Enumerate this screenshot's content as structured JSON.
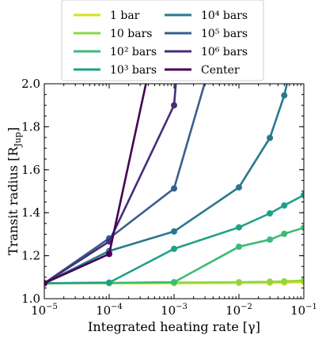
{
  "chart_data": {
    "type": "line",
    "xlabel": "Integrated heating rate [γ]",
    "ylabel": "Transit radius [R",
    "ylabel_sub": "Jup",
    "ylabel_end": "]",
    "xscale": "log",
    "xlim": [
      1e-05,
      0.1
    ],
    "ylim": [
      1.0,
      2.0
    ],
    "xticks": [
      {
        "v": 1e-05,
        "base": "10",
        "exp": "−5"
      },
      {
        "v": 0.0001,
        "base": "10",
        "exp": "−4"
      },
      {
        "v": 0.001,
        "base": "10",
        "exp": "−3"
      },
      {
        "v": 0.01,
        "base": "10",
        "exp": "−2"
      },
      {
        "v": 0.1,
        "base": "10",
        "exp": "−1"
      }
    ],
    "yticks": [
      "1.0",
      "1.2",
      "1.4",
      "1.6",
      "1.8",
      "2.0"
    ],
    "grid": false,
    "legend_placement": "top-center outside",
    "series": [
      {
        "name": "1 bar",
        "color": "#d5e21a",
        "points": [
          [
            1e-05,
            1.072
          ],
          [
            0.0001,
            1.072
          ],
          [
            0.001,
            1.072
          ],
          [
            0.01,
            1.073
          ],
          [
            0.03,
            1.074
          ],
          [
            0.05,
            1.075
          ],
          [
            0.1,
            1.077
          ]
        ]
      },
      {
        "name": "10 bars",
        "color": "#8ed645",
        "points": [
          [
            1e-05,
            1.072
          ],
          [
            0.0001,
            1.073
          ],
          [
            0.001,
            1.075
          ],
          [
            0.01,
            1.077
          ],
          [
            0.03,
            1.079
          ],
          [
            0.05,
            1.081
          ],
          [
            0.1,
            1.085
          ]
        ]
      },
      {
        "name": "10² bars",
        "color": "#3bbb75",
        "points": [
          [
            1e-05,
            1.072
          ],
          [
            0.0001,
            1.073
          ],
          [
            0.001,
            1.077
          ],
          [
            0.01,
            1.242
          ],
          [
            0.03,
            1.275
          ],
          [
            0.05,
            1.302
          ],
          [
            0.1,
            1.33
          ]
        ]
      },
      {
        "name": "10³ bars",
        "color": "#1fa187",
        "points": [
          [
            1e-05,
            1.072
          ],
          [
            0.0001,
            1.075
          ],
          [
            0.001,
            1.232
          ],
          [
            0.01,
            1.332
          ],
          [
            0.03,
            1.397
          ],
          [
            0.05,
            1.434
          ],
          [
            0.1,
            1.482
          ]
        ]
      },
      {
        "name": "10⁴ bars",
        "color": "#2a788e",
        "points": [
          [
            1e-05,
            1.072
          ],
          [
            0.0001,
            1.222
          ],
          [
            0.001,
            1.313
          ],
          [
            0.01,
            1.518
          ],
          [
            0.03,
            1.748
          ],
          [
            0.05,
            1.946
          ],
          [
            0.06,
            2.05
          ]
        ]
      },
      {
        "name": "10⁵ bars",
        "color": "#3a5e8c",
        "points": [
          [
            1e-05,
            1.072
          ],
          [
            0.0001,
            1.281
          ],
          [
            0.001,
            1.513
          ],
          [
            0.0033,
            2.05
          ]
        ]
      },
      {
        "name": "10⁶ bars",
        "color": "#472d7b",
        "points": [
          [
            1e-05,
            1.072
          ],
          [
            0.0001,
            1.266
          ],
          [
            0.001,
            1.9
          ],
          [
            0.0011,
            2.05
          ]
        ]
      },
      {
        "name": "Center",
        "color": "#440154",
        "points": [
          [
            1e-05,
            1.072
          ],
          [
            0.0001,
            1.208
          ],
          [
            0.0004,
            2.05
          ]
        ]
      }
    ]
  }
}
